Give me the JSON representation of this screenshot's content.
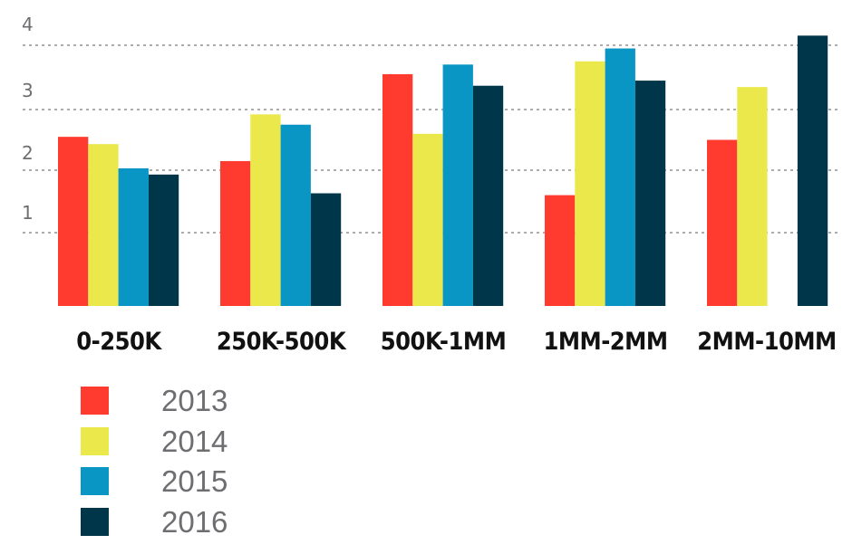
{
  "chart_data": {
    "type": "bar",
    "categories": [
      "0-250K",
      "250K-500K",
      "500K-1MM",
      "1MM-2MM",
      "2MM-10MM"
    ],
    "series": [
      {
        "name": "2013",
        "color": "#ff3b30",
        "values": [
          2.55,
          2.15,
          3.55,
          1.6,
          2.5
        ]
      },
      {
        "name": "2014",
        "color": "#eae84b",
        "values": [
          2.43,
          2.92,
          2.6,
          3.75,
          3.35
        ]
      },
      {
        "name": "2015",
        "color": "#0996c4",
        "values": [
          2.03,
          2.75,
          3.7,
          3.95,
          null
        ]
      },
      {
        "name": "2016",
        "color": "#003649",
        "values": [
          1.93,
          1.63,
          3.37,
          3.45,
          4.15
        ]
      }
    ],
    "y_ticks": [
      "1",
      "2",
      "3",
      "4"
    ],
    "ylim": [
      0,
      4.3
    ],
    "grid": true,
    "legend_position": "bottom-left"
  }
}
